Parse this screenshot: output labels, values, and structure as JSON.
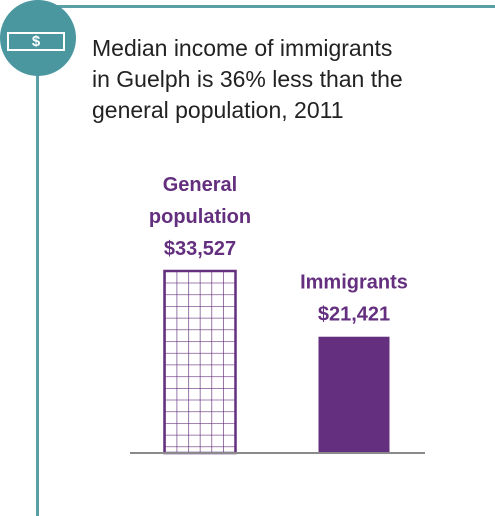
{
  "headline": {
    "line1": "Median income of immigrants",
    "line2": "in Guelph is 36% less than the",
    "line3": "general population, 2011"
  },
  "badge": {
    "symbol": "$",
    "icon": "dollar-icon"
  },
  "colors": {
    "accent": "#4a97a0",
    "bar": "#632f7e",
    "baseline": "#8a8a8a"
  },
  "chart_data": {
    "type": "bar",
    "title": "Median income of immigrants in Guelph is 36% less than the general population, 2011",
    "categories": [
      "General population",
      "Immigrants"
    ],
    "values": [
      33527,
      21421
    ],
    "value_labels": [
      "$33,527",
      "$21,421"
    ],
    "category_label_lines": [
      [
        "General",
        "population"
      ],
      [
        "Immigrants"
      ]
    ],
    "series": [
      {
        "values": [
          33527,
          21421
        ]
      }
    ],
    "bar_styles": [
      "grid-pattern",
      "solid"
    ],
    "xlabel": "",
    "ylabel": "",
    "ylim": [
      0,
      33527
    ],
    "grid": false,
    "legend": "none"
  }
}
